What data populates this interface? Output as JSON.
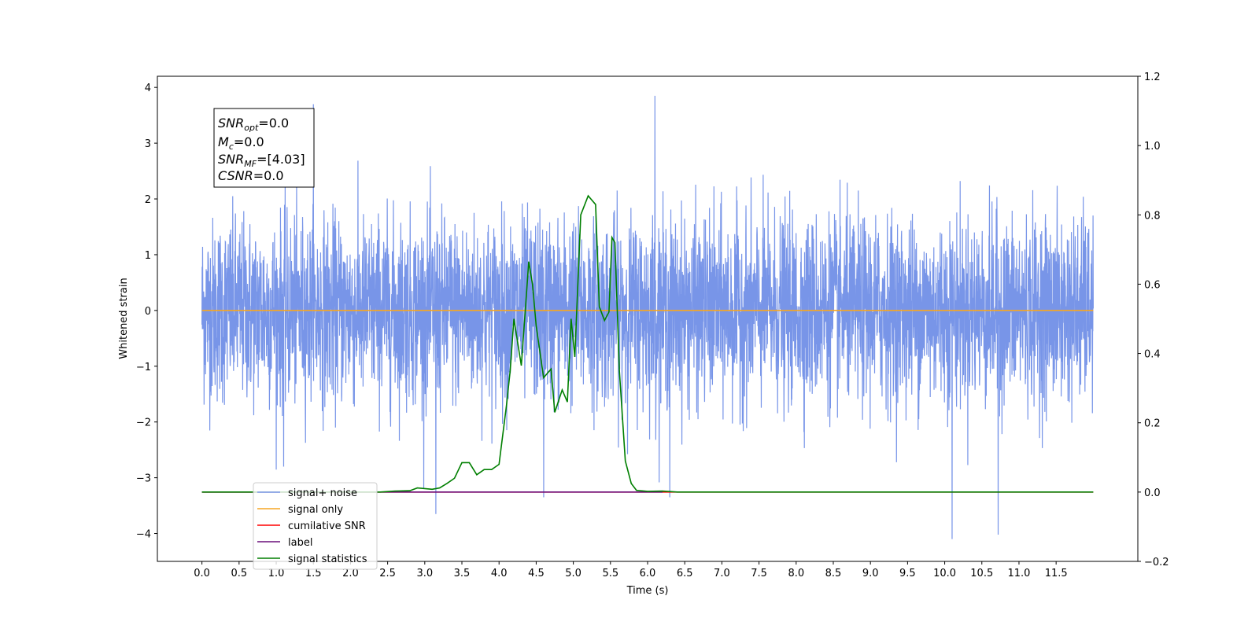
{
  "chart_data": {
    "type": "line",
    "xlabel": "Time (s)",
    "ylabel": "Whitened strain",
    "xlim": [
      -0.6,
      12.6
    ],
    "ylim": [
      -4.5,
      4.2
    ],
    "y2lim": [
      -0.2,
      1.2
    ],
    "x_ticks": [
      "0.0",
      "0.5",
      "1.0",
      "1.5",
      "2.0",
      "2.5",
      "3.0",
      "3.5",
      "4.0",
      "4.5",
      "5.0",
      "5.5",
      "6.0",
      "6.5",
      "7.0",
      "7.5",
      "8.0",
      "8.5",
      "9.0",
      "9.5",
      "10.0",
      "10.5",
      "11.0",
      "11.5"
    ],
    "y_ticks": [
      "−4",
      "−3",
      "−2",
      "−1",
      "0",
      "1",
      "2",
      "3",
      "4"
    ],
    "y2_ticks": [
      "−0.2",
      "0.0",
      "0.2",
      "0.4",
      "0.6",
      "0.8",
      "1.0",
      "1.2"
    ],
    "grid": false,
    "legend_placement": "lower-left",
    "info_box": {
      "snr_opt": {
        "base": "SNR",
        "sub": "opt",
        "value": "=0.0"
      },
      "mc": {
        "base": "M",
        "sub": "c",
        "value": "=0.0"
      },
      "snr_mf": {
        "base": "SNR",
        "sub": "MF",
        "value": "=[4.03]"
      },
      "csnr": {
        "base": "CSNR",
        "value": "=0.0"
      }
    },
    "series": [
      {
        "name": "signal+ noise",
        "color": "#7895e8",
        "axis": "left",
        "description_only": true,
        "x_range": [
          0.0,
          12.0
        ],
        "mean": 0.0,
        "spikes": [
          [
            1.5,
            3.7
          ],
          [
            6.1,
            3.85
          ],
          [
            4.6,
            -3.35
          ],
          [
            3.15,
            -3.65
          ],
          [
            10.1,
            -4.1
          ],
          [
            10.72,
            -4.02
          ],
          [
            6.3,
            -3.35
          ],
          [
            1.1,
            -2.8
          ]
        ]
      },
      {
        "name": "signal only",
        "color": "#f5a623",
        "axis": "left",
        "x": [
          0.0,
          12.0
        ],
        "y": [
          0.0,
          0.0
        ]
      },
      {
        "name": "cumilative SNR",
        "color": "#ff0000",
        "axis": "right",
        "x": [
          0.0,
          12.0
        ],
        "y": [
          0.0,
          0.0
        ]
      },
      {
        "name": "label",
        "color": "#6a0f7a",
        "axis": "right",
        "x": [
          0.0,
          6.2
        ],
        "y": [
          0.0,
          0.0
        ]
      },
      {
        "name": "signal statistics",
        "color": "#007f00",
        "axis": "right",
        "x": [
          0.0,
          2.4,
          2.6,
          2.8,
          2.9,
          3.0,
          3.1,
          3.2,
          3.3,
          3.4,
          3.5,
          3.6,
          3.7,
          3.8,
          3.9,
          4.0,
          4.1,
          4.15,
          4.2,
          4.3,
          4.4,
          4.45,
          4.5,
          4.6,
          4.7,
          4.75,
          4.85,
          4.92,
          4.97,
          5.02,
          5.1,
          5.2,
          5.3,
          5.35,
          5.42,
          5.48,
          5.52,
          5.56,
          5.62,
          5.7,
          5.78,
          5.85,
          6.0,
          6.2,
          6.4,
          12.0
        ],
        "y": [
          0.0,
          0.0,
          0.003,
          0.004,
          0.012,
          0.01,
          0.008,
          0.012,
          0.025,
          0.04,
          0.085,
          0.085,
          0.05,
          0.065,
          0.065,
          0.08,
          0.25,
          0.35,
          0.5,
          0.365,
          0.665,
          0.6,
          0.48,
          0.33,
          0.355,
          0.23,
          0.295,
          0.26,
          0.5,
          0.39,
          0.8,
          0.855,
          0.83,
          0.535,
          0.495,
          0.52,
          0.735,
          0.72,
          0.35,
          0.09,
          0.025,
          0.005,
          0.002,
          0.003,
          0.0,
          0.0
        ]
      }
    ]
  }
}
